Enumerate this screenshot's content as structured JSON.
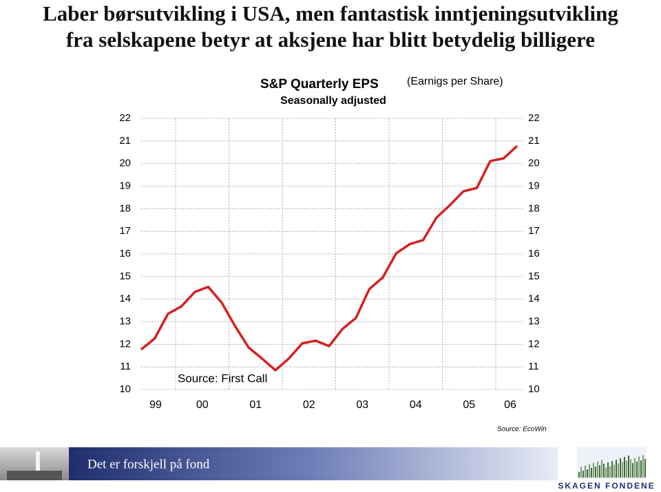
{
  "header": {
    "title_lines": [
      "Laber børsutvikling i USA, men fantastisk inntjeningsutvikling",
      "fra selskapene betyr at aksjene har blitt betydelig billigere"
    ]
  },
  "chart_data": {
    "type": "line",
    "title": "S&P Quarterly EPS",
    "subtitle": "(Earnigs per Share)",
    "subtitle2": "Seasonally adjusted",
    "annotation": "Source: First Call",
    "source": "Source: EcoWin",
    "year_labels": [
      "99",
      "00",
      "01",
      "02",
      "03",
      "04",
      "05",
      "06"
    ],
    "values": [
      11.77,
      12.25,
      13.35,
      13.68,
      14.32,
      14.54,
      13.84,
      12.8,
      11.86,
      11.37,
      10.85,
      11.37,
      12.04,
      12.16,
      11.92,
      12.68,
      13.17,
      14.45,
      14.96,
      16.03,
      16.43,
      16.61,
      17.61,
      18.16,
      18.77,
      18.92,
      20.11,
      20.23,
      20.78
    ],
    "color": "#d62020",
    "ylim": [
      10,
      22
    ],
    "yticks": [
      10,
      11,
      12,
      13,
      14,
      15,
      16,
      17,
      18,
      19,
      20,
      21,
      22
    ],
    "grid": true
  },
  "footer": {
    "slogan": "Det er forskjell på fond",
    "logo": "SKAGEN FONDENE"
  }
}
